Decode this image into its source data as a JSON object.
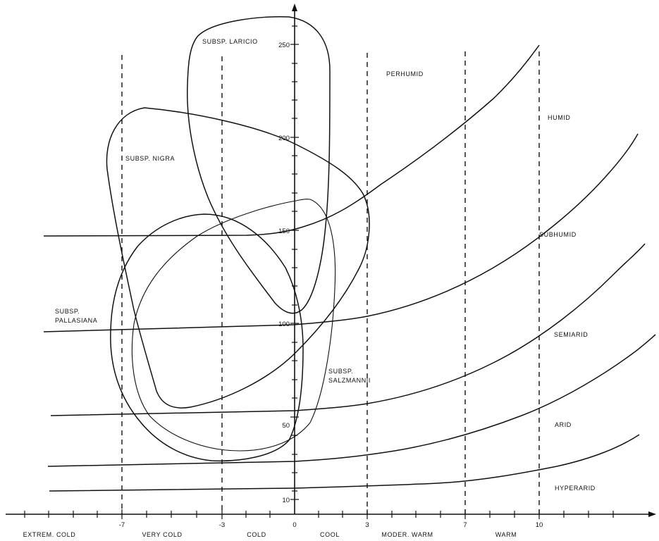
{
  "chart_data": {
    "type": "diagram",
    "y_axis": {
      "ticks": [
        "10",
        "50",
        "100",
        "150",
        "200",
        "250"
      ]
    },
    "x_axis": {
      "ticks": [
        "-7",
        "-3",
        "0",
        "3",
        "7",
        "10"
      ],
      "zones": [
        "EXTREM. COLD",
        "VERY COLD",
        "COLD",
        "COOL",
        "MODER. WARM",
        "WARM"
      ]
    },
    "moisture_zones": [
      "PERHUMID",
      "HUMID",
      "SUBHUMID",
      "SEMIARID",
      "ARID",
      "HYPERARID"
    ],
    "subspecies": [
      {
        "key": "laricio",
        "label": "SUBSP. LARICIO"
      },
      {
        "key": "nigra",
        "label": "SUBSP. NIGRA"
      },
      {
        "key": "pallasiana",
        "label_lines": [
          "SUBSP.",
          "PALLASIANA"
        ]
      },
      {
        "key": "salzmannii",
        "label_lines": [
          "SUBSP.",
          "SALZMANNII"
        ]
      }
    ]
  }
}
